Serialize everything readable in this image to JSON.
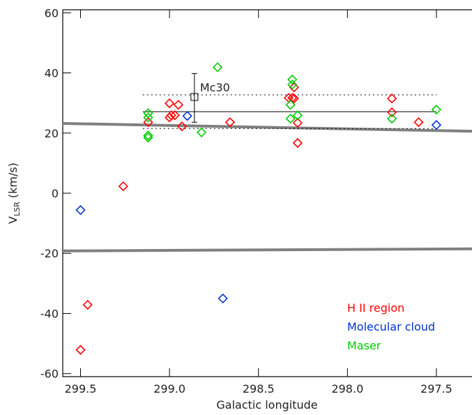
{
  "chart_data": {
    "type": "scatter",
    "xlabel": "Galactic longitude",
    "ylabel": {
      "main": "V",
      "sub": "LSR",
      "unit": " (km/s)"
    },
    "xlim": [
      299.6,
      297.3
    ],
    "xticks": [
      {
        "value": 299.5,
        "label": "299.5"
      },
      {
        "value": 299,
        "label": "299.0"
      },
      {
        "value": 298.5,
        "label": "298.5"
      },
      {
        "value": 298,
        "label": "298.0"
      },
      {
        "value": 297.5,
        "label": "297.5"
      }
    ],
    "ylim": [
      -61,
      61
    ],
    "yticks": [
      -60,
      -40,
      -20,
      0,
      20,
      40,
      60
    ],
    "legend": "lower right",
    "series": [
      {
        "name": "H II region",
        "color": "#ff0000",
        "x": [
          299.5,
          299.46,
          299.26,
          299.12,
          299.0,
          299.0,
          298.99,
          298.97,
          298.95,
          298.93,
          298.66,
          298.33,
          298.31,
          298.3,
          298.3,
          298.28,
          298.28,
          297.75,
          297.75,
          297.6
        ],
        "values": [
          -52.1,
          -37.1,
          2.3,
          23.6,
          29.9,
          25.2,
          25.9,
          25.9,
          29.4,
          22.2,
          23.6,
          31.7,
          31.7,
          35.2,
          31.5,
          23.4,
          16.7,
          31.5,
          26.9,
          23.6
        ]
      },
      {
        "name": "Molecular cloud",
        "color": "#0033cc",
        "x": [
          299.5,
          298.9,
          298.7,
          297.5
        ],
        "values": [
          -5.6,
          25.7,
          -35,
          22.7
        ]
      },
      {
        "name": "Maser",
        "color": "#00cc00",
        "x": [
          299.12,
          299.12,
          299.12,
          299.12,
          298.82,
          298.73,
          298.31,
          298.31,
          298.32,
          298.32,
          298.28,
          297.75,
          297.5
        ],
        "values": [
          26.6,
          25.2,
          19.2,
          18.5,
          20.2,
          41.9,
          37.8,
          36.1,
          29.4,
          24.8,
          25.9,
          24.8,
          27.8
        ]
      }
    ],
    "reference_lines": [
      {
        "x": [
          299.6,
          297.3
        ],
        "values": [
          23.2,
          20.6
        ]
      },
      {
        "x": [
          299.6,
          297.3
        ],
        "values": [
          -19.2,
          -18.5
        ]
      }
    ],
    "mc30": {
      "label": "Mc30",
      "x": 298.86,
      "value": 32,
      "error_high": 39.8,
      "error_low": 23.6,
      "mean_line": {
        "x": [
          299.15,
          297.5
        ],
        "value": 27.1
      },
      "range_lines": {
        "x": [
          299.15,
          297.5
        ],
        "values": [
          32.7,
          21.5
        ]
      }
    }
  }
}
